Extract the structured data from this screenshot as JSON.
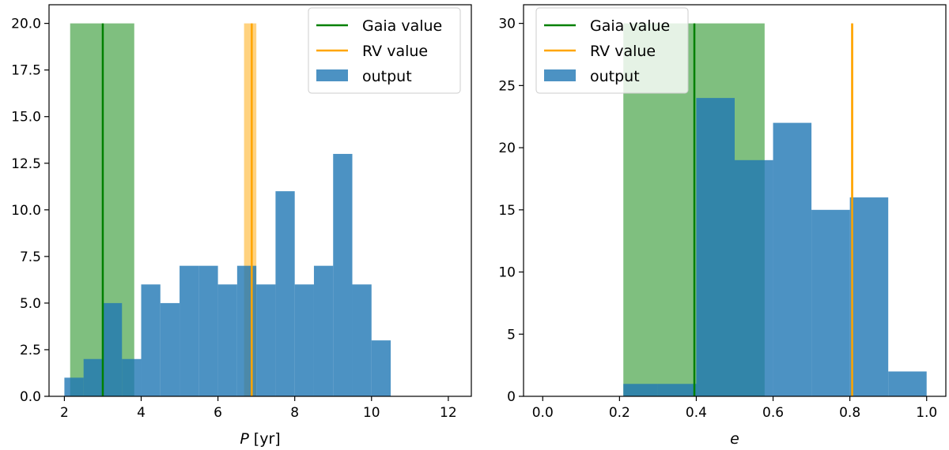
{
  "chart_data": [
    {
      "type": "bar",
      "title": "",
      "xlabel_var": "P",
      "xlabel_unit": "[yr]",
      "ylabel": "",
      "xlim": [
        1.6,
        12.6
      ],
      "ylim": [
        0,
        21
      ],
      "xticks": [
        2,
        4,
        6,
        8,
        10,
        12
      ],
      "xtick_labels": [
        "2",
        "4",
        "6",
        "8",
        "10",
        "12"
      ],
      "yticks": [
        0,
        2.5,
        5,
        7.5,
        10,
        12.5,
        15,
        17.5,
        20
      ],
      "ytick_labels": [
        "0.0",
        "2.5",
        "5.0",
        "7.5",
        "10.0",
        "12.5",
        "15.0",
        "17.5",
        "20.0"
      ],
      "legend": [
        {
          "label": "Gaia value",
          "color": "#008000",
          "kind": "line"
        },
        {
          "label": "RV value",
          "color": "#ffa500",
          "kind": "line"
        },
        {
          "label": "output",
          "color": "#1f77b4",
          "kind": "patch"
        }
      ],
      "gaia": {
        "value": 3.0,
        "band": [
          2.15,
          3.82
        ],
        "height": 20
      },
      "rv": {
        "value": 6.88,
        "band": [
          6.68,
          7.0
        ],
        "height": 20
      },
      "output_hist": {
        "bin_edges": [
          2.0,
          2.5,
          3.0,
          3.5,
          4.0,
          4.5,
          5.0,
          5.5,
          6.0,
          6.5,
          7.0,
          7.5,
          8.0,
          8.5,
          9.0,
          9.5,
          10.0,
          10.5
        ],
        "counts": [
          1,
          2,
          5,
          2,
          6,
          5,
          7,
          7,
          6,
          7,
          6,
          11,
          6,
          7,
          13,
          6,
          3
        ]
      }
    },
    {
      "type": "bar",
      "title": "",
      "xlabel_var": "e",
      "xlabel_unit": "",
      "ylabel": "",
      "xlim": [
        -0.05,
        1.05
      ],
      "ylim": [
        0,
        31.5
      ],
      "xticks": [
        0,
        0.2,
        0.4,
        0.6,
        0.8,
        1.0
      ],
      "xtick_labels": [
        "0.0",
        "0.2",
        "0.4",
        "0.6",
        "0.8",
        "1.0"
      ],
      "yticks": [
        0,
        5,
        10,
        15,
        20,
        25,
        30
      ],
      "ytick_labels": [
        "0",
        "5",
        "10",
        "15",
        "20",
        "25",
        "30"
      ],
      "legend": [
        {
          "label": "Gaia value",
          "color": "#008000",
          "kind": "line"
        },
        {
          "label": "RV value",
          "color": "#ffa500",
          "kind": "line"
        },
        {
          "label": "output",
          "color": "#1f77b4",
          "kind": "patch"
        }
      ],
      "gaia": {
        "value": 0.395,
        "band": [
          0.21,
          0.578
        ],
        "height": 30
      },
      "rv": {
        "value": 0.806,
        "band": [
          0.803,
          0.809
        ],
        "height": 30
      },
      "output_hist": {
        "bin_edges": [
          0.21,
          0.3,
          0.4,
          0.5,
          0.6,
          0.7,
          0.8,
          0.9,
          1.0
        ],
        "counts": [
          1,
          1,
          24,
          19,
          22,
          15,
          16,
          2
        ]
      }
    }
  ]
}
